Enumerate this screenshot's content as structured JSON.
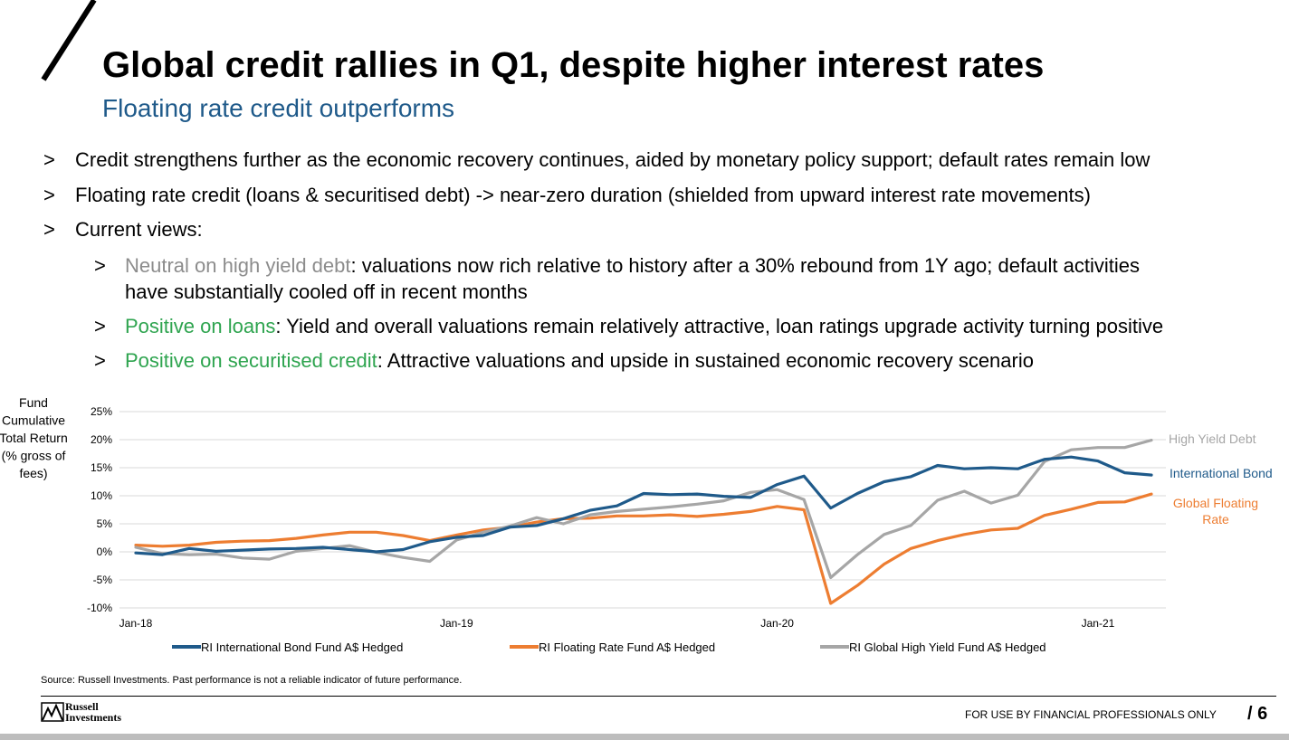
{
  "slide": {
    "title": "Global credit rallies in Q1, despite higher interest rates",
    "subtitle": "Floating rate credit outperforms"
  },
  "bullets": {
    "marker": ">",
    "b1": "Credit strengthens further as the economic recovery continues, aided by monetary policy support; default rates remain low",
    "b2": "Floating rate credit (loans & securitised debt) -> near-zero duration (shielded from upward interest rate movements)",
    "b3": "Current views:",
    "s1_lead": "Neutral on high yield debt",
    "s1_text": ": valuations now rich relative to history after a 30% rebound from 1Y ago; default activities",
    "s1_text2": "have substantially cooled off in recent months",
    "s2_lead": "Positive on loans",
    "s2_text": ": Yield and overall valuations remain relatively attractive, loan ratings upgrade activity turning positive",
    "s3_lead": "Positive on securitised credit",
    "s3_text": ": Attractive valuations and upside in sustained economic recovery scenario"
  },
  "chart_data": {
    "type": "line",
    "ylabel": [
      "Fund",
      "Cumulative",
      "Total Return",
      "(% gross of",
      "fees)"
    ],
    "ylim": [
      -10,
      25
    ],
    "yticks": [
      -10,
      -5,
      0,
      5,
      10,
      15,
      20,
      25
    ],
    "ytick_labels": [
      "-10%",
      "-5%",
      "0%",
      "5%",
      "10%",
      "15%",
      "20%",
      "25%"
    ],
    "x_ticks": [
      {
        "label": "Jan-18",
        "index": 0
      },
      {
        "label": "Jan-19",
        "index": 12
      },
      {
        "label": "Jan-20",
        "index": 24
      },
      {
        "label": "Jan-21",
        "index": 36
      }
    ],
    "x_count": 39,
    "grid": true,
    "series": [
      {
        "name": "RI International Bond Fund A$ Hedged",
        "end_label": [
          "International Bond"
        ],
        "color": "#1f5a8a",
        "values": [
          -0.2,
          -0.5,
          0.6,
          0.1,
          0.3,
          0.5,
          0.6,
          0.8,
          0.4,
          0.0,
          0.4,
          1.8,
          2.6,
          2.9,
          4.4,
          4.7,
          5.9,
          7.4,
          8.2,
          10.4,
          10.2,
          10.3,
          9.9,
          9.7,
          12.0,
          13.5,
          7.8,
          10.4,
          12.5,
          13.4,
          15.4,
          14.8,
          15.0,
          14.8,
          16.5,
          16.9,
          16.2,
          14.1,
          13.7
        ]
      },
      {
        "name": "RI Floating Rate Fund A$ Hedged",
        "end_label": [
          "Global Floating",
          "Rate"
        ],
        "color": "#ed7d31",
        "values": [
          1.2,
          1.0,
          1.2,
          1.7,
          1.9,
          2.0,
          2.4,
          3.0,
          3.5,
          3.5,
          2.9,
          2.0,
          3.0,
          3.9,
          4.4,
          5.3,
          5.9,
          6.0,
          6.4,
          6.4,
          6.6,
          6.3,
          6.7,
          7.2,
          8.1,
          7.5,
          -9.2,
          -6.0,
          -2.2,
          0.6,
          2.0,
          3.1,
          3.9,
          4.2,
          6.5,
          7.6,
          8.8,
          8.9,
          10.3
        ]
      },
      {
        "name": "RI Global High Yield Fund A$ Hedged",
        "end_label": [
          "High Yield Debt"
        ],
        "color": "#a6a6a6",
        "values": [
          0.8,
          -0.3,
          -0.5,
          -0.4,
          -1.1,
          -1.3,
          0.1,
          0.6,
          1.1,
          -0.1,
          -1.0,
          -1.7,
          2.1,
          3.5,
          4.6,
          6.1,
          5.0,
          6.6,
          7.2,
          7.6,
          8.0,
          8.5,
          9.1,
          10.6,
          11.1,
          9.3,
          -4.6,
          -0.5,
          3.1,
          4.7,
          9.2,
          10.8,
          8.7,
          10.1,
          16.1,
          18.2,
          18.6,
          18.6,
          19.9
        ]
      }
    ]
  },
  "footer": {
    "source": "Source: Russell Investments. Past performance is not a reliable indicator of future performance.",
    "logo_line1": "Russell",
    "logo_line2": "Investments",
    "note": "FOR USE BY FINANCIAL PROFESSIONALS ONLY",
    "page_label": "/  6"
  },
  "colors": {
    "accent_blue": "#1f5a8a",
    "green": "#2ea44f",
    "gray_text": "#8c8c8c"
  }
}
